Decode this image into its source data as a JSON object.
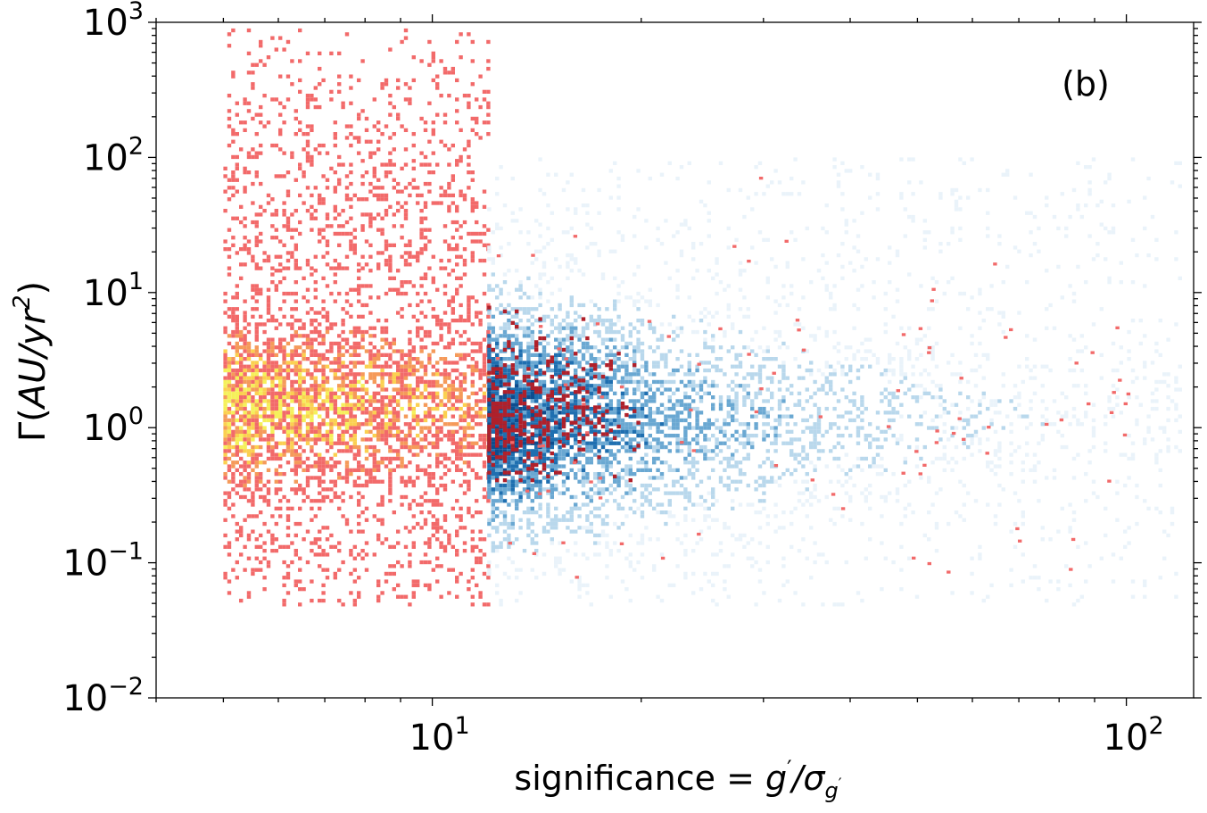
{
  "chart_data": {
    "type": "heatmap",
    "title": "",
    "panel_label": "(b)",
    "xlabel": "significance = g′/σg′",
    "xlabel_parts": {
      "lead": "significance = ",
      "g": "g",
      "gprime": "′",
      "slash": "/",
      "sigma": "σ",
      "sub_g": "g",
      "sub_prime": "′"
    },
    "ylabel": "Γ(AU/yr²)",
    "ylabel_parts": {
      "gamma": "Γ",
      "open": "(",
      "au": "AU/yr",
      "sq": "2",
      "close": ")"
    },
    "x_scale": "log",
    "y_scale": "log",
    "xlim": [
      4,
      125
    ],
    "ylim": [
      0.01,
      1000
    ],
    "x_ticks": [
      {
        "value": 10,
        "base": "10",
        "exp": "1"
      },
      {
        "value": 100,
        "base": "10",
        "exp": "2"
      }
    ],
    "y_ticks": [
      {
        "value": 0.01,
        "base": "10",
        "exp": "−2"
      },
      {
        "value": 0.1,
        "base": "10",
        "exp": "−1"
      },
      {
        "value": 1,
        "base": "10",
        "exp": "0"
      },
      {
        "value": 10,
        "base": "10",
        "exp": "1"
      },
      {
        "value": 100,
        "base": "10",
        "exp": "2"
      },
      {
        "value": 1000,
        "base": "10",
        "exp": "3"
      }
    ],
    "grid": false,
    "legend": "none",
    "series": [
      {
        "colormap": [
          "#f26a6a",
          "#f59a5a",
          "#fbd050",
          "#f5f05a"
        ],
        "x_range": [
          5,
          12
        ],
        "y_range": [
          0.05,
          15
        ],
        "y_peak": 1.5,
        "sparse_x_range": [
          5,
          75
        ],
        "sparse_y_range": [
          0.05,
          900
        ]
      },
      {
        "colormap": [
          "#eaf3fa",
          "#b9d8ec",
          "#6aa8d2",
          "#1f6fb0",
          "#0d4d8f"
        ],
        "x_range": [
          12,
          120
        ],
        "y_range": [
          0.05,
          100
        ],
        "y_peak": 1.2,
        "overlap_color": "#b0202a"
      }
    ]
  }
}
